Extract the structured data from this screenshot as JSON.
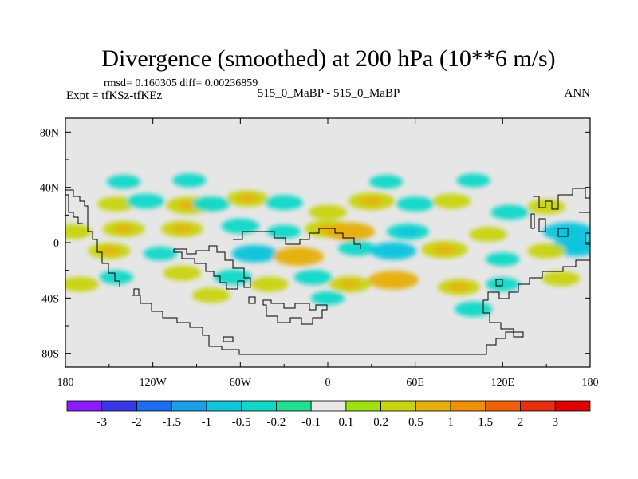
{
  "chart_data": {
    "type": "heatmap",
    "title": "Divergence (smoothed) at 200 hPa (10**6 m/s)",
    "stats_line": "rmsd= 0.160305 diff= 0.00236859",
    "left_label": "Expt = tfKSz-tfKEz",
    "center_label": "515_0_MaBP - 515_0_MaBP",
    "right_label": "ANN",
    "x_axis": {
      "range": [
        -180,
        180
      ],
      "ticks": [
        -180,
        -120,
        -60,
        0,
        60,
        120,
        180
      ],
      "tick_labels": [
        "180",
        "120W",
        "60W",
        "0",
        "60E",
        "120E",
        "180"
      ]
    },
    "y_axis": {
      "range": [
        -90,
        90
      ],
      "ticks": [
        80,
        40,
        0,
        -40,
        -80
      ],
      "tick_labels": [
        "80N",
        "40N",
        "0",
        "40S",
        "80S"
      ]
    },
    "colorbar": {
      "labels": [
        "-3",
        "-2",
        "-1.5",
        "-1",
        "-0.5",
        "-0.2",
        "-0.1",
        "0.1",
        "0.2",
        "0.5",
        "1",
        "1.5",
        "2",
        "3"
      ],
      "colors": [
        "#8c1aff",
        "#3838ea",
        "#1c6ef0",
        "#1aa0e8",
        "#10c4dc",
        "#10d8c8",
        "#20e090",
        "#e8e8e8",
        "#9ee010",
        "#c8d410",
        "#e6b00c",
        "#f09008",
        "#f06008",
        "#e83010",
        "#e00000"
      ]
    },
    "anomalies": [
      {
        "lon": -145,
        "lat": 28,
        "value": 0.3
      },
      {
        "lon": -125,
        "lat": 30,
        "value": -0.3
      },
      {
        "lon": -95,
        "lat": 27,
        "value": 0.5
      },
      {
        "lon": -80,
        "lat": 28,
        "value": -0.3
      },
      {
        "lon": -55,
        "lat": 32,
        "value": 0.4
      },
      {
        "lon": -30,
        "lat": 29,
        "value": -0.3
      },
      {
        "lon": 0,
        "lat": 22,
        "value": 0.3
      },
      {
        "lon": 30,
        "lat": 30,
        "value": 0.5
      },
      {
        "lon": 60,
        "lat": 28,
        "value": -0.3
      },
      {
        "lon": 85,
        "lat": 30,
        "value": 0.3
      },
      {
        "lon": 125,
        "lat": 22,
        "value": -0.3
      },
      {
        "lon": 150,
        "lat": 26,
        "value": 0.3
      },
      {
        "lon": -140,
        "lat": 44,
        "value": -0.2
      },
      {
        "lon": -95,
        "lat": 45,
        "value": -0.2
      },
      {
        "lon": 40,
        "lat": 44,
        "value": -0.2
      },
      {
        "lon": 100,
        "lat": 45,
        "value": -0.2
      },
      {
        "lon": -175,
        "lat": 8,
        "value": 0.3
      },
      {
        "lon": -140,
        "lat": 10,
        "value": 0.4
      },
      {
        "lon": -100,
        "lat": 10,
        "value": 0.4
      },
      {
        "lon": -60,
        "lat": 12,
        "value": -0.3
      },
      {
        "lon": -30,
        "lat": 8,
        "value": -0.2
      },
      {
        "lon": 0,
        "lat": 10,
        "value": 0.5
      },
      {
        "lon": 15,
        "lat": 8,
        "value": 0.6
      },
      {
        "lon": 55,
        "lat": 8,
        "value": -0.4
      },
      {
        "lon": 110,
        "lat": 6,
        "value": 0.3
      },
      {
        "lon": 165,
        "lat": 8,
        "value": -0.6
      },
      {
        "lon": 170,
        "lat": -3,
        "value": -0.6
      },
      {
        "lon": -150,
        "lat": -6,
        "value": 0.4
      },
      {
        "lon": -115,
        "lat": -8,
        "value": -0.2
      },
      {
        "lon": -50,
        "lat": -8,
        "value": -0.5
      },
      {
        "lon": -20,
        "lat": -10,
        "value": 0.6
      },
      {
        "lon": 20,
        "lat": -4,
        "value": -0.3
      },
      {
        "lon": 45,
        "lat": -6,
        "value": -0.5
      },
      {
        "lon": 80,
        "lat": -5,
        "value": 0.5
      },
      {
        "lon": 120,
        "lat": -12,
        "value": -0.2
      },
      {
        "lon": 150,
        "lat": -6,
        "value": 0.3
      },
      {
        "lon": -170,
        "lat": -30,
        "value": 0.3
      },
      {
        "lon": -145,
        "lat": -25,
        "value": -0.2
      },
      {
        "lon": -100,
        "lat": -22,
        "value": 0.3
      },
      {
        "lon": -65,
        "lat": -25,
        "value": -0.3
      },
      {
        "lon": -40,
        "lat": -30,
        "value": 0.3
      },
      {
        "lon": -10,
        "lat": -25,
        "value": -0.3
      },
      {
        "lon": 15,
        "lat": -30,
        "value": 0.4
      },
      {
        "lon": 45,
        "lat": -27,
        "value": 0.6
      },
      {
        "lon": 90,
        "lat": -32,
        "value": 0.4
      },
      {
        "lon": 120,
        "lat": -30,
        "value": -0.2
      },
      {
        "lon": 160,
        "lat": -26,
        "value": 0.3
      },
      {
        "lon": -80,
        "lat": -38,
        "value": 0.3
      },
      {
        "lon": 0,
        "lat": -40,
        "value": -0.2
      },
      {
        "lon": 100,
        "lat": -48,
        "value": -0.3
      }
    ]
  }
}
